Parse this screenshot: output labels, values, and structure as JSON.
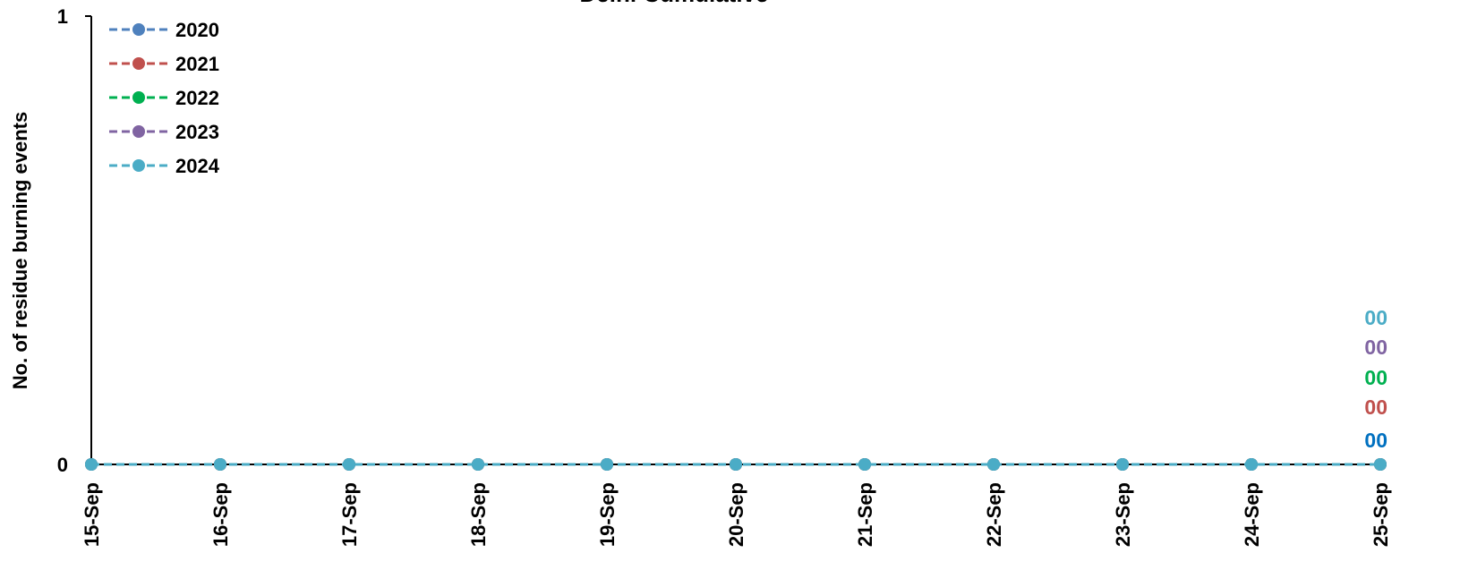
{
  "chart_data": {
    "type": "line",
    "title": "Delhi Cumulative",
    "xlabel": "",
    "ylabel": "No. of residue burning events",
    "categories": [
      "15-Sep",
      "16-Sep",
      "17-Sep",
      "18-Sep",
      "19-Sep",
      "20-Sep",
      "21-Sep",
      "22-Sep",
      "23-Sep",
      "24-Sep",
      "25-Sep"
    ],
    "ylim": [
      0,
      1
    ],
    "yticks": [
      0,
      1
    ],
    "grid": false,
    "legend_position": "top-left",
    "series": [
      {
        "name": "2020",
        "color": "#4F81BD",
        "label_color": "#0070C0",
        "values": [
          0,
          0,
          0,
          0,
          0,
          0,
          0,
          0,
          0,
          0,
          0
        ],
        "end_label": "00"
      },
      {
        "name": "2021",
        "color": "#C0504D",
        "label_color": "#C0504D",
        "values": [
          0,
          0,
          0,
          0,
          0,
          0,
          0,
          0,
          0,
          0,
          0
        ],
        "end_label": "00"
      },
      {
        "name": "2022",
        "color": "#00B050",
        "label_color": "#00B050",
        "values": [
          0,
          0,
          0,
          0,
          0,
          0,
          0,
          0,
          0,
          0,
          0
        ],
        "end_label": "00"
      },
      {
        "name": "2023",
        "color": "#8064A2",
        "label_color": "#8064A2",
        "values": [
          0,
          0,
          0,
          0,
          0,
          0,
          0,
          0,
          0,
          0,
          0
        ],
        "end_label": "00"
      },
      {
        "name": "2024",
        "color": "#4BACC6",
        "label_color": "#4BACC6",
        "values": [
          0,
          0,
          0,
          0,
          0,
          0,
          0,
          0,
          0,
          0,
          0
        ],
        "end_label": "00"
      }
    ]
  }
}
